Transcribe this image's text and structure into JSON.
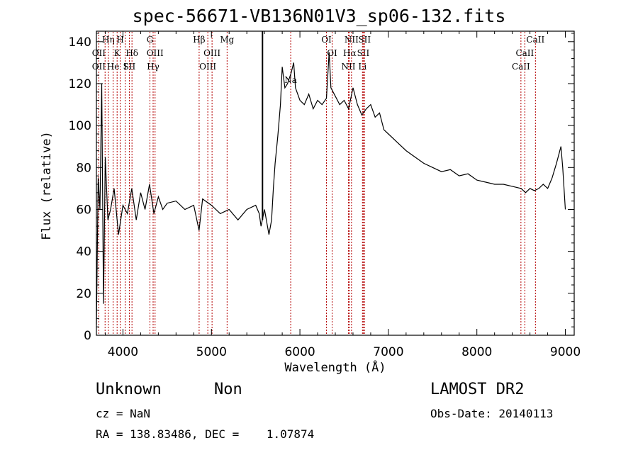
{
  "chart_data": {
    "type": "line",
    "title": "spec-56671-VB136N01V3_sp06-132.fits",
    "xlabel": "Wavelength (Å)",
    "ylabel": "Flux (relative)",
    "xlim": [
      3700,
      9100
    ],
    "ylim": [
      0,
      145
    ],
    "xticks": [
      4000,
      5000,
      6000,
      7000,
      8000,
      9000
    ],
    "yticks": [
      0,
      20,
      40,
      60,
      80,
      100,
      120,
      140
    ],
    "grid": false,
    "series": [
      {
        "x": [
          3700,
          3720,
          3740,
          3760,
          3780,
          3800,
          3830,
          3860,
          3900,
          3950,
          4000,
          4050,
          4100,
          4150,
          4200,
          4250,
          4300,
          4350,
          4400,
          4450,
          4500,
          4600,
          4700,
          4800,
          4860,
          4900,
          5000,
          5100,
          5200,
          5300,
          5400,
          5500,
          5540,
          5560,
          5600,
          5650,
          5680,
          5700,
          5720,
          5750,
          5780,
          5800,
          5830,
          5860,
          5900,
          5930,
          5950,
          6000,
          6050,
          6100,
          6150,
          6200,
          6250,
          6300,
          6330,
          6350,
          6400,
          6450,
          6500,
          6550,
          6600,
          6650,
          6700,
          6750,
          6800,
          6850,
          6900,
          6950,
          7000,
          7100,
          7200,
          7300,
          7400,
          7500,
          7600,
          7700,
          7800,
          7900,
          8000,
          8100,
          8200,
          8300,
          8400,
          8500,
          8550,
          8600,
          8650,
          8700,
          8750,
          8800,
          8850,
          8900,
          8950,
          8970,
          9000
        ],
        "values": [
          5,
          75,
          60,
          120,
          15,
          85,
          55,
          60,
          70,
          48,
          62,
          58,
          70,
          55,
          68,
          60,
          72,
          58,
          66,
          60,
          63,
          64,
          60,
          62,
          50,
          65,
          62,
          58,
          60,
          55,
          60,
          62,
          58,
          52,
          60,
          48,
          55,
          70,
          82,
          95,
          110,
          128,
          118,
          120,
          125,
          130,
          118,
          112,
          110,
          115,
          108,
          112,
          110,
          113,
          135,
          118,
          114,
          110,
          112,
          108,
          118,
          110,
          105,
          108,
          110,
          104,
          106,
          98,
          96,
          92,
          88,
          85,
          82,
          80,
          78,
          79,
          76,
          77,
          74,
          73,
          72,
          72,
          71,
          70,
          68,
          70,
          69,
          70,
          72,
          70,
          75,
          82,
          90,
          80,
          60
        ]
      }
    ],
    "spikes": [
      {
        "x": 5577,
        "y": 145
      }
    ],
    "lines": [
      {
        "x": 3727,
        "labels": [
          {
            "text": "OII",
            "row": 1
          },
          {
            "text": "OII",
            "row": 2
          }
        ]
      },
      {
        "x": 3798,
        "labels": []
      },
      {
        "x": 3835,
        "labels": [
          {
            "text": "Hη",
            "row": 0
          }
        ]
      },
      {
        "x": 3889,
        "labels": [
          {
            "text": "He",
            "row": 2
          }
        ]
      },
      {
        "x": 3934,
        "labels": [
          {
            "text": "K",
            "row": 1
          }
        ]
      },
      {
        "x": 3969,
        "labels": [
          {
            "text": "H",
            "row": 0
          }
        ]
      },
      {
        "x": 4026,
        "labels": [
          {
            "text": "I",
            "row": 2
          }
        ]
      },
      {
        "x": 4072,
        "labels": [
          {
            "text": "SII",
            "row": 2
          }
        ]
      },
      {
        "x": 4102,
        "labels": [
          {
            "text": "Hδ",
            "row": 1
          }
        ]
      },
      {
        "x": 4305,
        "labels": [
          {
            "text": "G",
            "row": 0
          }
        ]
      },
      {
        "x": 4341,
        "labels": [
          {
            "text": "Hγ",
            "row": 2
          }
        ]
      },
      {
        "x": 4363,
        "labels": [
          {
            "text": "OIII",
            "row": 1
          }
        ]
      },
      {
        "x": 4861,
        "labels": [
          {
            "text": "Hβ",
            "row": 0
          }
        ]
      },
      {
        "x": 4959,
        "labels": [
          {
            "text": "OIII",
            "row": 2
          }
        ]
      },
      {
        "x": 5007,
        "labels": [
          {
            "text": "OIII",
            "row": 1
          }
        ]
      },
      {
        "x": 5177,
        "labels": [
          {
            "text": "Mg",
            "row": 0
          }
        ]
      },
      {
        "x": 5896,
        "labels": [
          {
            "text": "Na",
            "row": 3
          }
        ]
      },
      {
        "x": 6300,
        "labels": [
          {
            "text": "OI",
            "row": 0
          }
        ]
      },
      {
        "x": 6364,
        "labels": [
          {
            "text": "OI",
            "row": 1
          }
        ]
      },
      {
        "x": 6548,
        "labels": [
          {
            "text": "NII",
            "row": 2
          }
        ]
      },
      {
        "x": 6563,
        "labels": [
          {
            "text": "Hα",
            "row": 1
          }
        ]
      },
      {
        "x": 6583,
        "labels": [
          {
            "text": "NII",
            "row": 0
          }
        ]
      },
      {
        "x": 6707,
        "labels": [
          {
            "text": "Li",
            "row": 2
          }
        ]
      },
      {
        "x": 6716,
        "labels": [
          {
            "text": "SII",
            "row": 1
          }
        ]
      },
      {
        "x": 6731,
        "labels": [
          {
            "text": "SII",
            "row": 0
          }
        ]
      },
      {
        "x": 8498,
        "labels": [
          {
            "text": "CaII",
            "row": 2
          }
        ]
      },
      {
        "x": 8542,
        "labels": [
          {
            "text": "CaII",
            "row": 1
          }
        ]
      },
      {
        "x": 8662,
        "labels": [
          {
            "text": "CaII",
            "row": 0
          }
        ]
      }
    ],
    "line_color": "#000000",
    "marker_color": "#b30000"
  },
  "info": {
    "class": "Unknown",
    "subclass": "Non",
    "cz": "cz = NaN",
    "coords": "RA = 138.83486, DEC =    1.07874",
    "survey": "LAMOST DR2",
    "obs_date": "Obs-Date: 20140113"
  }
}
